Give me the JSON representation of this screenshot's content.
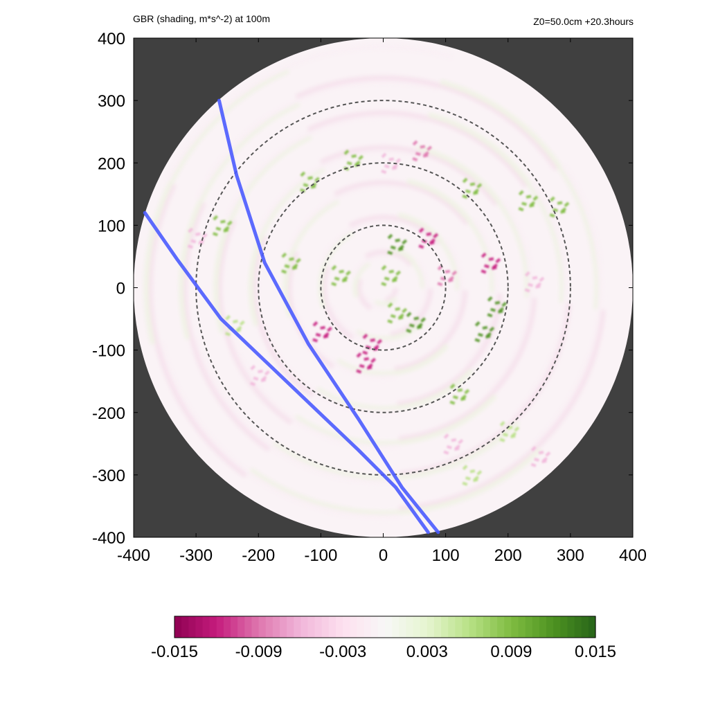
{
  "header": {
    "title": "GBR (shading, m*s^-2) at 100m",
    "info": "Z0=50.0cm  +20.3hours"
  },
  "chart_data": {
    "type": "heatmap",
    "title": "GBR (shading, m*s^-2) at 100m",
    "subtitle": "Z0=50.0cm  +20.3hours",
    "xlim": [
      -400,
      400
    ],
    "ylim": [
      -400,
      400
    ],
    "x_ticks": [
      -400,
      -300,
      -200,
      -100,
      0,
      100,
      200,
      300,
      400
    ],
    "y_ticks": [
      -400,
      -300,
      -200,
      -100,
      0,
      100,
      200,
      300,
      400
    ],
    "domain_radius": 400,
    "background_outside_domain": "#404040",
    "range_rings_radius": [
      100,
      200,
      300
    ],
    "colorbar": {
      "range": [
        -0.015,
        0.015
      ],
      "tick_labels": [
        "-0.015",
        "-0.009",
        "-0.003",
        "0.003",
        "0.009",
        "0.015"
      ],
      "colors": [
        "#8e0152",
        "#c51b7d",
        "#de77ae",
        "#f1b6da",
        "#fde0ef",
        "#f7f7f7",
        "#e6f5d0",
        "#b8e186",
        "#7fbc41",
        "#4d9221",
        "#276419"
      ]
    },
    "lines": [
      {
        "color": "#4a5bff",
        "points": [
          [
            -263,
            300
          ],
          [
            -235,
            180
          ],
          [
            -190,
            40
          ],
          [
            -120,
            -90
          ],
          [
            -40,
            -210
          ],
          [
            30,
            -320
          ],
          [
            88,
            -392
          ]
        ]
      },
      {
        "color": "#4a5bff",
        "points": [
          [
            -382,
            120
          ],
          [
            -330,
            45
          ],
          [
            -260,
            -50
          ],
          [
            -150,
            -155
          ],
          [
            -40,
            -260
          ],
          [
            20,
            -320
          ],
          [
            72,
            -392
          ]
        ]
      }
    ],
    "features": [
      {
        "type": "positive",
        "x": 20,
        "y": 70,
        "value": 0.012
      },
      {
        "type": "positive",
        "x": 10,
        "y": 20,
        "value": 0.01
      },
      {
        "type": "positive",
        "x": 20,
        "y": -40,
        "value": 0.009
      },
      {
        "type": "positive",
        "x": 50,
        "y": -55,
        "value": 0.012
      },
      {
        "type": "positive",
        "x": -70,
        "y": 20,
        "value": 0.008
      },
      {
        "type": "positive",
        "x": -120,
        "y": 170,
        "value": 0.008
      },
      {
        "type": "positive",
        "x": -50,
        "y": 205,
        "value": 0.009
      },
      {
        "type": "positive",
        "x": 140,
        "y": 160,
        "value": 0.008
      },
      {
        "type": "positive",
        "x": 230,
        "y": 140,
        "value": 0.01
      },
      {
        "type": "positive",
        "x": 280,
        "y": 130,
        "value": 0.009
      },
      {
        "type": "positive",
        "x": 160,
        "y": -70,
        "value": 0.012
      },
      {
        "type": "positive",
        "x": 180,
        "y": -30,
        "value": 0.011
      },
      {
        "type": "positive",
        "x": 120,
        "y": -170,
        "value": 0.008
      },
      {
        "type": "positive",
        "x": -260,
        "y": 100,
        "value": 0.008
      },
      {
        "type": "positive",
        "x": -240,
        "y": -60,
        "value": 0.007
      },
      {
        "type": "positive",
        "x": -150,
        "y": 40,
        "value": 0.008
      },
      {
        "type": "positive",
        "x": 200,
        "y": -230,
        "value": 0.007
      },
      {
        "type": "positive",
        "x": 140,
        "y": -300,
        "value": 0.006
      },
      {
        "type": "negative",
        "x": 70,
        "y": 80,
        "value": -0.011
      },
      {
        "type": "negative",
        "x": 100,
        "y": 20,
        "value": -0.01
      },
      {
        "type": "negative",
        "x": -20,
        "y": -90,
        "value": -0.011
      },
      {
        "type": "negative",
        "x": -100,
        "y": -70,
        "value": -0.012
      },
      {
        "type": "negative",
        "x": -30,
        "y": -120,
        "value": -0.012
      },
      {
        "type": "negative",
        "x": 170,
        "y": 40,
        "value": -0.012
      },
      {
        "type": "negative",
        "x": 60,
        "y": 220,
        "value": -0.008
      },
      {
        "type": "negative",
        "x": 10,
        "y": 200,
        "value": -0.007
      },
      {
        "type": "negative",
        "x": -300,
        "y": 80,
        "value": -0.006
      },
      {
        "type": "negative",
        "x": 250,
        "y": -270,
        "value": -0.007
      },
      {
        "type": "negative",
        "x": 240,
        "y": 10,
        "value": -0.006
      },
      {
        "type": "negative",
        "x": 110,
        "y": -250,
        "value": -0.007
      },
      {
        "type": "negative",
        "x": -200,
        "y": -140,
        "value": -0.006
      }
    ]
  }
}
